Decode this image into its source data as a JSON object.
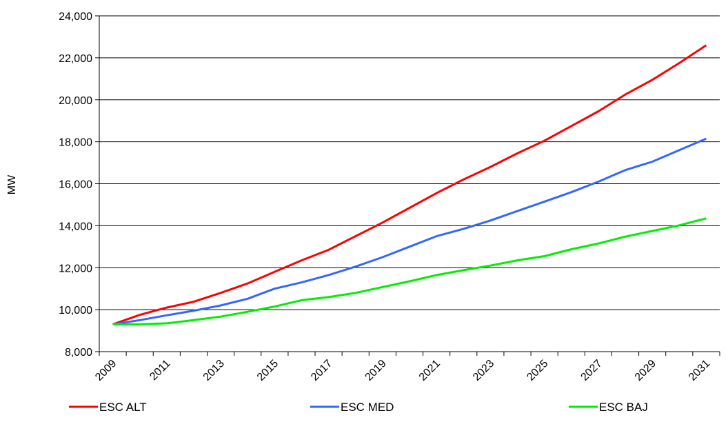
{
  "chart_data": {
    "type": "line",
    "title": "",
    "xlabel": "",
    "ylabel": "MW",
    "ylim": [
      8000,
      24000
    ],
    "xlim": [
      2009,
      2031
    ],
    "yticks": [
      8000,
      10000,
      12000,
      14000,
      16000,
      18000,
      20000,
      22000,
      24000
    ],
    "ytick_labels": [
      "8,000",
      "10,000",
      "12,000",
      "14,000",
      "16,000",
      "18,000",
      "20,000",
      "22,000",
      "24,000"
    ],
    "xtick_labels": [
      "2009",
      "2011",
      "2013",
      "2015",
      "2017",
      "2019",
      "2021",
      "2023",
      "2025",
      "2027",
      "2029",
      "2031"
    ],
    "grid": "horizontal",
    "legend_position": "bottom",
    "x": [
      2009,
      2010,
      2011,
      2012,
      2013,
      2014,
      2015,
      2016,
      2017,
      2018,
      2019,
      2020,
      2021,
      2022,
      2023,
      2024,
      2025,
      2026,
      2027,
      2028,
      2029,
      2030,
      2031
    ],
    "series": [
      {
        "name": "ESC ALT",
        "color": "#ff0000",
        "values": [
          9300,
          9750,
          10100,
          10380,
          10800,
          11250,
          11800,
          12350,
          12850,
          13500,
          14150,
          14850,
          15550,
          16200,
          16800,
          17450,
          18050,
          18750,
          19450,
          20250,
          20950,
          21750,
          22600
        ]
      },
      {
        "name": "ESC MED",
        "color": "#3366ff",
        "values": [
          9300,
          9500,
          9730,
          9950,
          10200,
          10520,
          11000,
          11300,
          11650,
          12050,
          12500,
          13000,
          13500,
          13850,
          14250,
          14700,
          15150,
          15600,
          16100,
          16650,
          17050,
          17600,
          18150
        ]
      },
      {
        "name": "ESC BAJ",
        "color": "#00ee00",
        "values": [
          9300,
          9300,
          9350,
          9500,
          9670,
          9900,
          10150,
          10450,
          10600,
          10800,
          11080,
          11350,
          11650,
          11880,
          12100,
          12350,
          12550,
          12880,
          13150,
          13480,
          13750,
          14020,
          14350
        ]
      }
    ]
  }
}
